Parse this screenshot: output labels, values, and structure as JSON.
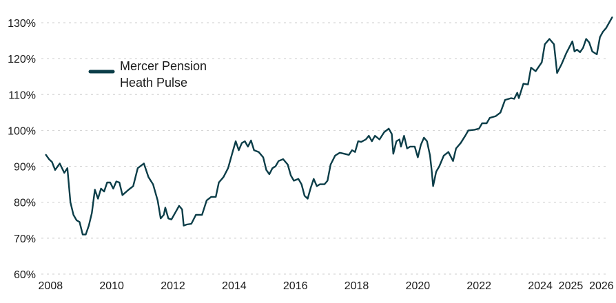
{
  "chart_data": {
    "type": "line",
    "title": "",
    "xlabel": "",
    "ylabel": "",
    "ylim": [
      60,
      130
    ],
    "xlim": [
      2007.7,
      2026.25
    ],
    "grid": true,
    "legend_placement": "top-left",
    "x_ticks": [
      {
        "value": 2008,
        "label": "2008"
      },
      {
        "value": 2010,
        "label": "2010"
      },
      {
        "value": 2012,
        "label": "2012"
      },
      {
        "value": 2014,
        "label": "2014"
      },
      {
        "value": 2016,
        "label": "2016"
      },
      {
        "value": 2018,
        "label": "2018"
      },
      {
        "value": 2020,
        "label": "2020"
      },
      {
        "value": 2022,
        "label": "2022"
      },
      {
        "value": 2024,
        "label": "2024"
      },
      {
        "value": 2025,
        "label": "2025"
      },
      {
        "value": 2026,
        "label": "2026"
      }
    ],
    "y_ticks": [
      {
        "value": 60,
        "label": "60%"
      },
      {
        "value": 70,
        "label": "70%"
      },
      {
        "value": 80,
        "label": "80%"
      },
      {
        "value": 90,
        "label": "90%"
      },
      {
        "value": 100,
        "label": "100%"
      },
      {
        "value": 110,
        "label": "110%"
      },
      {
        "value": 120,
        "label": "120%"
      },
      {
        "value": 130,
        "label": "130%"
      }
    ],
    "series": [
      {
        "name": [
          "Mercer Pension",
          "Heath Pulse"
        ],
        "color": "#0b3d48",
        "points": [
          [
            2007.85,
            93.2
          ],
          [
            2007.95,
            92.0
          ],
          [
            2008.05,
            91.2
          ],
          [
            2008.15,
            89.0
          ],
          [
            2008.3,
            90.8
          ],
          [
            2008.45,
            88.2
          ],
          [
            2008.55,
            89.5
          ],
          [
            2008.65,
            80.0
          ],
          [
            2008.75,
            76.5
          ],
          [
            2008.85,
            75.0
          ],
          [
            2008.95,
            74.5
          ],
          [
            2009.05,
            71.0
          ],
          [
            2009.15,
            71.0
          ],
          [
            2009.25,
            73.5
          ],
          [
            2009.35,
            77.0
          ],
          [
            2009.45,
            83.5
          ],
          [
            2009.55,
            81.0
          ],
          [
            2009.65,
            83.8
          ],
          [
            2009.75,
            83.0
          ],
          [
            2009.85,
            85.5
          ],
          [
            2009.95,
            85.5
          ],
          [
            2010.05,
            83.8
          ],
          [
            2010.15,
            85.8
          ],
          [
            2010.25,
            85.5
          ],
          [
            2010.35,
            82.0
          ],
          [
            2010.55,
            83.5
          ],
          [
            2010.7,
            84.5
          ],
          [
            2010.85,
            89.5
          ],
          [
            2011.05,
            90.8
          ],
          [
            2011.2,
            87.0
          ],
          [
            2011.35,
            85.0
          ],
          [
            2011.5,
            80.5
          ],
          [
            2011.6,
            75.5
          ],
          [
            2011.7,
            76.5
          ],
          [
            2011.75,
            78.5
          ],
          [
            2011.85,
            75.5
          ],
          [
            2011.95,
            75.2
          ],
          [
            2012.1,
            77.5
          ],
          [
            2012.2,
            79.0
          ],
          [
            2012.3,
            78.0
          ],
          [
            2012.35,
            73.5
          ],
          [
            2012.45,
            73.8
          ],
          [
            2012.6,
            74.0
          ],
          [
            2012.75,
            76.5
          ],
          [
            2012.95,
            76.5
          ],
          [
            2013.1,
            80.5
          ],
          [
            2013.25,
            81.5
          ],
          [
            2013.4,
            81.5
          ],
          [
            2013.5,
            85.5
          ],
          [
            2013.65,
            87.0
          ],
          [
            2013.8,
            89.5
          ],
          [
            2013.95,
            94.0
          ],
          [
            2014.05,
            97.0
          ],
          [
            2014.15,
            94.5
          ],
          [
            2014.25,
            96.5
          ],
          [
            2014.35,
            97.0
          ],
          [
            2014.45,
            95.5
          ],
          [
            2014.55,
            97.2
          ],
          [
            2014.65,
            94.5
          ],
          [
            2014.8,
            94.0
          ],
          [
            2014.95,
            92.5
          ],
          [
            2015.05,
            89.0
          ],
          [
            2015.15,
            87.8
          ],
          [
            2015.25,
            89.5
          ],
          [
            2015.35,
            90.0
          ],
          [
            2015.45,
            91.5
          ],
          [
            2015.6,
            92.0
          ],
          [
            2015.75,
            90.5
          ],
          [
            2015.85,
            87.5
          ],
          [
            2015.95,
            86.0
          ],
          [
            2016.1,
            86.5
          ],
          [
            2016.2,
            85.0
          ],
          [
            2016.3,
            81.8
          ],
          [
            2016.4,
            81.0
          ],
          [
            2016.5,
            84.0
          ],
          [
            2016.6,
            86.5
          ],
          [
            2016.7,
            84.5
          ],
          [
            2016.8,
            85.0
          ],
          [
            2016.95,
            85.0
          ],
          [
            2017.05,
            86.0
          ],
          [
            2017.15,
            90.5
          ],
          [
            2017.3,
            93.0
          ],
          [
            2017.45,
            93.8
          ],
          [
            2017.6,
            93.5
          ],
          [
            2017.75,
            93.2
          ],
          [
            2017.85,
            94.5
          ],
          [
            2017.95,
            94.0
          ],
          [
            2018.05,
            97.0
          ],
          [
            2018.15,
            96.8
          ],
          [
            2018.3,
            97.5
          ],
          [
            2018.4,
            98.5
          ],
          [
            2018.5,
            97.0
          ],
          [
            2018.6,
            98.5
          ],
          [
            2018.75,
            97.5
          ],
          [
            2018.9,
            99.5
          ],
          [
            2019.05,
            100.5
          ],
          [
            2019.15,
            99.0
          ],
          [
            2019.2,
            93.5
          ],
          [
            2019.3,
            97.0
          ],
          [
            2019.4,
            97.5
          ],
          [
            2019.45,
            95.5
          ],
          [
            2019.55,
            98.5
          ],
          [
            2019.65,
            95.0
          ],
          [
            2019.75,
            95.5
          ],
          [
            2019.9,
            95.5
          ],
          [
            2020.0,
            92.5
          ],
          [
            2020.1,
            96.0
          ],
          [
            2020.2,
            98.0
          ],
          [
            2020.3,
            97.0
          ],
          [
            2020.4,
            93.0
          ],
          [
            2020.45,
            89.0
          ],
          [
            2020.5,
            84.5
          ],
          [
            2020.6,
            88.5
          ],
          [
            2020.7,
            90.0
          ],
          [
            2020.85,
            93.0
          ],
          [
            2021.0,
            94.0
          ],
          [
            2021.15,
            91.5
          ],
          [
            2021.25,
            95.0
          ],
          [
            2021.4,
            96.5
          ],
          [
            2021.55,
            98.5
          ],
          [
            2021.65,
            100.0
          ],
          [
            2021.85,
            100.2
          ],
          [
            2022.0,
            100.5
          ],
          [
            2022.1,
            102.0
          ],
          [
            2022.25,
            102.0
          ],
          [
            2022.35,
            103.5
          ],
          [
            2022.55,
            104.0
          ],
          [
            2022.7,
            105.0
          ],
          [
            2022.85,
            108.5
          ],
          [
            2023.05,
            109.0
          ],
          [
            2023.15,
            108.8
          ],
          [
            2023.25,
            110.5
          ],
          [
            2023.3,
            109.0
          ],
          [
            2023.45,
            113.0
          ],
          [
            2023.6,
            112.8
          ],
          [
            2023.7,
            117.5
          ],
          [
            2023.85,
            116.5
          ],
          [
            2024.05,
            119.0
          ],
          [
            2024.15,
            124.0
          ],
          [
            2024.3,
            125.5
          ],
          [
            2024.45,
            124.0
          ],
          [
            2024.55,
            116.0
          ],
          [
            2024.7,
            118.5
          ],
          [
            2024.85,
            121.5
          ],
          [
            2025.05,
            124.8
          ],
          [
            2025.12,
            122.0
          ],
          [
            2025.2,
            122.5
          ],
          [
            2025.3,
            121.8
          ],
          [
            2025.4,
            123.0
          ],
          [
            2025.5,
            125.5
          ],
          [
            2025.6,
            124.5
          ],
          [
            2025.7,
            122.0
          ],
          [
            2025.85,
            121.2
          ],
          [
            2025.95,
            126.0
          ],
          [
            2026.05,
            127.5
          ],
          [
            2026.15,
            128.5
          ],
          [
            2026.25,
            130.0
          ],
          [
            2026.35,
            131.5
          ]
        ]
      }
    ]
  }
}
